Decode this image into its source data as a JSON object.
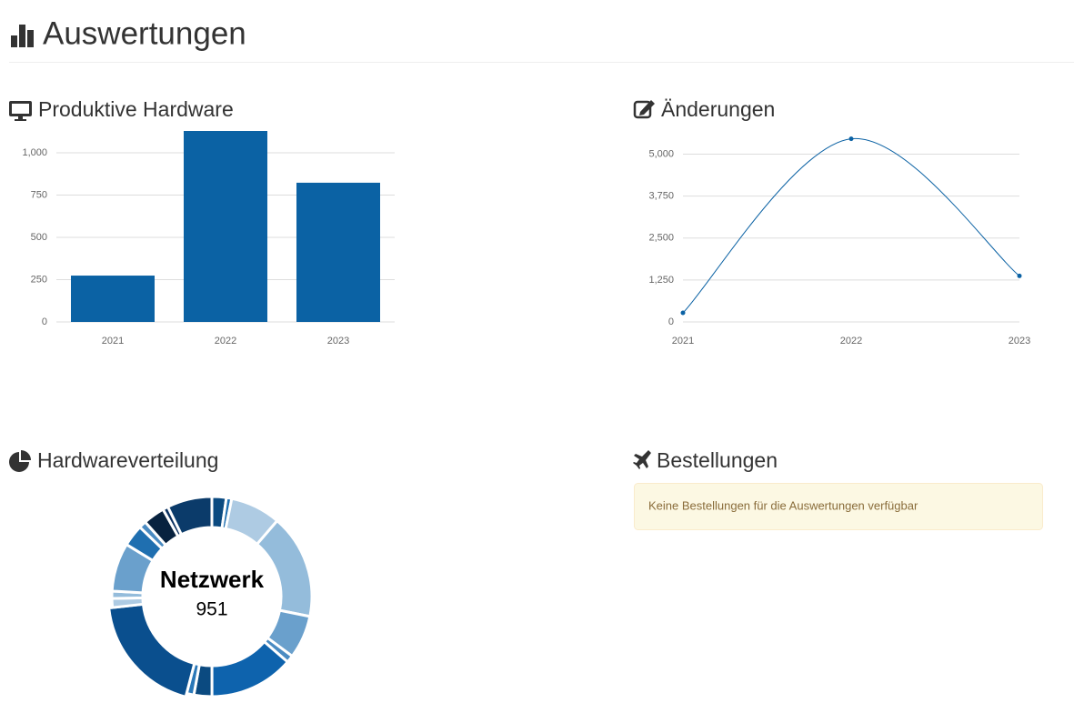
{
  "header": {
    "title": "Auswertungen"
  },
  "chart_data": [
    {
      "type": "bar",
      "title": "Produktive Hardware",
      "categories": [
        "2021",
        "2022",
        "2023"
      ],
      "values": [
        274,
        1129,
        823
      ],
      "color": "#0b62a4",
      "ylim": [
        0,
        1129
      ],
      "yticks": [
        0,
        250,
        500,
        750,
        {
          "value": 1000,
          "label": "1,000"
        }
      ],
      "grid": true
    },
    {
      "type": "line",
      "title": "Änderungen",
      "categories": [
        "2021",
        "2022",
        "2023"
      ],
      "values": [
        270,
        5457,
        1371
      ],
      "color": "#0b62a4",
      "ylim": [
        0,
        5500
      ],
      "yticks": [
        0,
        {
          "value": 1250,
          "label": "1,250"
        },
        {
          "value": 2500,
          "label": "2,500"
        },
        {
          "value": 3750,
          "label": "3,750"
        },
        {
          "value": 5000,
          "label": "5,000"
        }
      ],
      "grid": true
    },
    {
      "type": "donut",
      "title": "Hardwareverteilung",
      "categories": [
        null,
        null,
        null,
        null,
        null,
        null,
        null,
        null,
        null,
        "Netzwerk",
        null,
        null,
        null,
        null,
        null,
        null,
        null,
        null
      ],
      "values": [
        115,
        43,
        403,
        836,
        346,
        58,
        677,
        144,
        58,
        951,
        72,
        58,
        389,
        173,
        58,
        173,
        43,
        360
      ],
      "colors": [
        "#0b4a80",
        "#1f6fb0",
        "#aecbe3",
        "#94bcdb",
        "#6aa0cc",
        "#4a8bc2",
        "#0e63ad",
        "#0b4a80",
        "#2a78b8",
        "#0a4f8e",
        "#aecbe3",
        "#94bcdb",
        "#6aa0cc",
        "#1f6fb0",
        "#4a8bc2",
        "#08223f",
        "#0a3060",
        "#0b3b6a"
      ],
      "highlight": 9
    }
  ],
  "orders": {
    "title": "Bestellungen",
    "message": "Keine Bestellungen für die Auswertungen verfügbar"
  }
}
